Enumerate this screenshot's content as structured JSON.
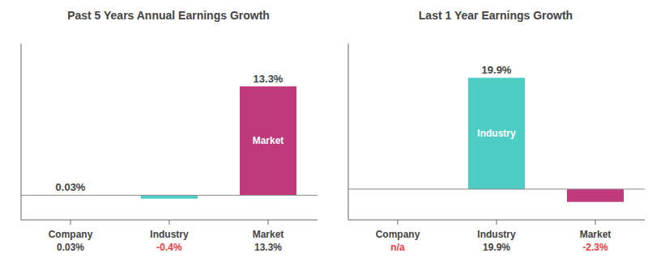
{
  "chart_data": [
    {
      "type": "bar",
      "title": "Past 5 Years Annual Earnings Growth",
      "categories": [
        "Company",
        "Industry",
        "Market"
      ],
      "values": [
        0.03,
        -0.4,
        13.3
      ],
      "value_labels": [
        "0.03%",
        "-0.4%",
        "13.3%"
      ],
      "colors": [
        "#4ecdc4",
        "#4ecdc4",
        "#c0397a"
      ],
      "ylim": [
        -3.0,
        18.5
      ],
      "tick_labels": false,
      "data_labels": true
    },
    {
      "type": "bar",
      "title": "Last 1 Year Earnings Growth",
      "categories": [
        "Company",
        "Industry",
        "Market"
      ],
      "values": [
        null,
        19.9,
        -2.3
      ],
      "value_labels": [
        "n/a",
        "19.9%",
        "-2.3%"
      ],
      "colors": [
        "#4ecdc4",
        "#4ecdc4",
        "#c0397a"
      ],
      "ylim": [
        -5.5,
        26.0
      ],
      "tick_labels": false,
      "data_labels": true
    }
  ]
}
